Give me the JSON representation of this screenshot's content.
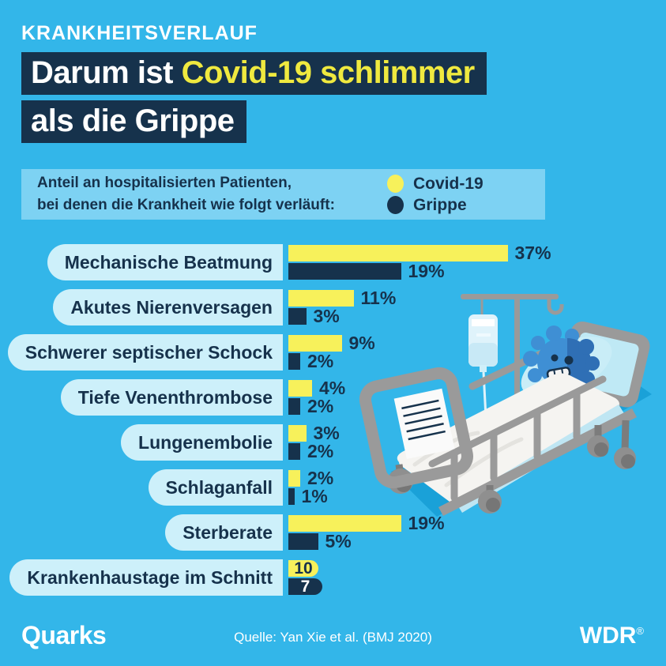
{
  "header": {
    "kicker": "KRANKHEITSVERLAUF",
    "title_line1_white": "Darum ist ",
    "title_line1_yellow": "Covid-19 schlimmer",
    "title_line2": "als die Grippe"
  },
  "legend": {
    "description_line1": "Anteil an hospitalisierten Patienten,",
    "description_line2": "bei denen die Krankheit wie folgt verläuft:",
    "items": [
      {
        "label": "Covid-19",
        "color": "#F7F15B"
      },
      {
        "label": "Grippe",
        "color": "#16324C"
      }
    ]
  },
  "chart_data": {
    "type": "bar",
    "orientation": "horizontal",
    "categories": [
      "Mechanische Beatmung",
      "Akutes Nierenversagen",
      "Schwerer septischer Schock",
      "Tiefe Venenthrombose",
      "Lungenembolie",
      "Schlaganfall",
      "Sterberate",
      "Krankenhaustage im Schnitt"
    ],
    "units": [
      "percent",
      "percent",
      "percent",
      "percent",
      "percent",
      "percent",
      "percent",
      "days"
    ],
    "series": [
      {
        "name": "Covid-19",
        "color": "#F7F15B",
        "values": [
          37,
          11,
          9,
          4,
          3,
          2,
          19,
          10
        ],
        "labels": [
          "37%",
          "11%",
          "9%",
          "4%",
          "3%",
          "2%",
          "19%",
          "10"
        ]
      },
      {
        "name": "Grippe",
        "color": "#16324C",
        "values": [
          19,
          3,
          2,
          2,
          2,
          1,
          5,
          7
        ],
        "labels": [
          "19%",
          "3%",
          "2%",
          "2%",
          "2%",
          "1%",
          "5%",
          "7"
        ]
      }
    ],
    "value_label_position": "outside except days row (inside rounded bar)",
    "legend_position": "top-right inside description box"
  },
  "illustration": {
    "name": "virus-character-in-hospital-bed-with-iv-drip"
  },
  "footer": {
    "brand": "Quarks",
    "source": "Quelle: Yan Xie et al. (BMJ 2020)",
    "network": "WDR",
    "registered": "®"
  },
  "colors": {
    "bg": "#33B6E9",
    "navy": "#16324C",
    "yellow": "#F7F15B",
    "title_yellow": "#EFE93F",
    "legend_box": "#7DD2F3",
    "pill": "#CDF0FA",
    "shadow": "#1AA1D8",
    "white": "#FFFFFF"
  }
}
